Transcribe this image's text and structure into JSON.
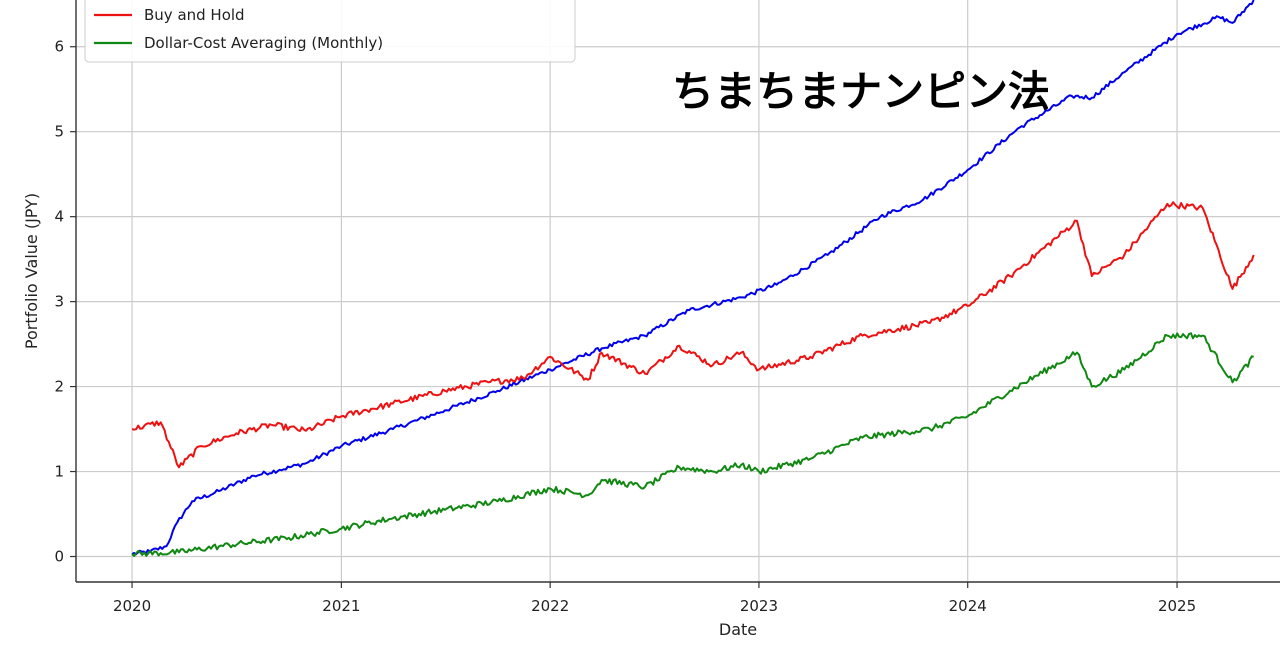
{
  "overlay_caption": "ちまちまナンピン法",
  "chart_data": {
    "type": "line",
    "title": "",
    "xlabel": "Date",
    "ylabel": "Portfolio Value (JPY)",
    "x_ticks": [
      "2020",
      "2021",
      "2022",
      "2023",
      "2024",
      "2025"
    ],
    "y_ticks": [
      "0",
      "1",
      "2",
      "3",
      "4",
      "5",
      "6"
    ],
    "xlim": [
      "2019-09-25",
      "2025-06-30"
    ],
    "ylim": [
      -0.3,
      6.55
    ],
    "grid": true,
    "legend_position": "top-left",
    "series": [
      {
        "name": "",
        "color": "#0000ee",
        "points": [
          [
            "2020-01-01",
            0.03
          ],
          [
            "2020-02-01",
            0.06
          ],
          [
            "2020-03-01",
            0.12
          ],
          [
            "2020-03-20",
            0.4
          ],
          [
            "2020-04-15",
            0.65
          ],
          [
            "2020-06-01",
            0.77
          ],
          [
            "2020-08-01",
            0.95
          ],
          [
            "2020-09-15",
            1.02
          ],
          [
            "2020-11-01",
            1.1
          ],
          [
            "2021-01-01",
            1.3
          ],
          [
            "2021-04-01",
            1.5
          ],
          [
            "2021-07-01",
            1.72
          ],
          [
            "2021-10-01",
            1.95
          ],
          [
            "2022-01-01",
            2.2
          ],
          [
            "2022-04-01",
            2.45
          ],
          [
            "2022-06-15",
            2.6
          ],
          [
            "2022-09-01",
            2.9
          ],
          [
            "2022-12-01",
            3.05
          ],
          [
            "2023-02-01",
            3.2
          ],
          [
            "2023-05-01",
            3.55
          ],
          [
            "2023-08-01",
            4.0
          ],
          [
            "2023-10-15",
            4.2
          ],
          [
            "2024-01-01",
            4.55
          ],
          [
            "2024-04-01",
            5.05
          ],
          [
            "2024-07-01",
            5.42
          ],
          [
            "2024-08-05",
            5.4
          ],
          [
            "2024-10-01",
            5.7
          ],
          [
            "2025-01-01",
            6.15
          ],
          [
            "2025-03-15",
            6.35
          ],
          [
            "2025-04-08",
            6.28
          ],
          [
            "2025-05-15",
            6.55
          ]
        ]
      },
      {
        "name": "Buy and Hold",
        "color": "#ee1111",
        "points": [
          [
            "2020-01-01",
            1.5
          ],
          [
            "2020-02-20",
            1.58
          ],
          [
            "2020-03-23",
            1.05
          ],
          [
            "2020-05-01",
            1.3
          ],
          [
            "2020-07-01",
            1.45
          ],
          [
            "2020-09-01",
            1.55
          ],
          [
            "2020-10-31",
            1.48
          ],
          [
            "2021-01-01",
            1.65
          ],
          [
            "2021-04-01",
            1.8
          ],
          [
            "2021-07-01",
            1.95
          ],
          [
            "2021-09-15",
            2.05
          ],
          [
            "2021-11-15",
            2.1
          ],
          [
            "2022-01-01",
            2.35
          ],
          [
            "2022-03-08",
            2.08
          ],
          [
            "2022-04-01",
            2.4
          ],
          [
            "2022-06-16",
            2.15
          ],
          [
            "2022-08-15",
            2.48
          ],
          [
            "2022-10-12",
            2.25
          ],
          [
            "2022-12-01",
            2.4
          ],
          [
            "2023-01-01",
            2.2
          ],
          [
            "2023-04-01",
            2.35
          ],
          [
            "2023-07-01",
            2.6
          ],
          [
            "2023-10-27",
            2.75
          ],
          [
            "2024-01-01",
            2.95
          ],
          [
            "2024-03-15",
            3.3
          ],
          [
            "2024-07-10",
            3.95
          ],
          [
            "2024-08-05",
            3.3
          ],
          [
            "2024-10-01",
            3.55
          ],
          [
            "2024-12-15",
            4.15
          ],
          [
            "2025-02-15",
            4.1
          ],
          [
            "2025-04-08",
            3.15
          ],
          [
            "2025-05-15",
            3.55
          ]
        ]
      },
      {
        "name": "Dollar-Cost Averaging (Monthly)",
        "color": "#118811",
        "points": [
          [
            "2020-01-01",
            0.03
          ],
          [
            "2020-03-23",
            0.05
          ],
          [
            "2020-06-01",
            0.12
          ],
          [
            "2020-10-01",
            0.22
          ],
          [
            "2021-01-01",
            0.33
          ],
          [
            "2021-04-01",
            0.45
          ],
          [
            "2021-07-01",
            0.55
          ],
          [
            "2021-10-01",
            0.65
          ],
          [
            "2022-01-01",
            0.8
          ],
          [
            "2022-03-08",
            0.72
          ],
          [
            "2022-04-01",
            0.9
          ],
          [
            "2022-06-16",
            0.82
          ],
          [
            "2022-08-15",
            1.05
          ],
          [
            "2022-10-12",
            1.0
          ],
          [
            "2022-12-01",
            1.08
          ],
          [
            "2023-01-01",
            1.0
          ],
          [
            "2023-04-01",
            1.15
          ],
          [
            "2023-07-01",
            1.4
          ],
          [
            "2023-10-27",
            1.5
          ],
          [
            "2024-01-01",
            1.65
          ],
          [
            "2024-03-15",
            1.95
          ],
          [
            "2024-07-10",
            2.4
          ],
          [
            "2024-08-05",
            2.0
          ],
          [
            "2024-10-01",
            2.2
          ],
          [
            "2024-12-15",
            2.6
          ],
          [
            "2025-02-15",
            2.6
          ],
          [
            "2025-04-08",
            2.05
          ],
          [
            "2025-05-15",
            2.35
          ]
        ]
      }
    ]
  }
}
